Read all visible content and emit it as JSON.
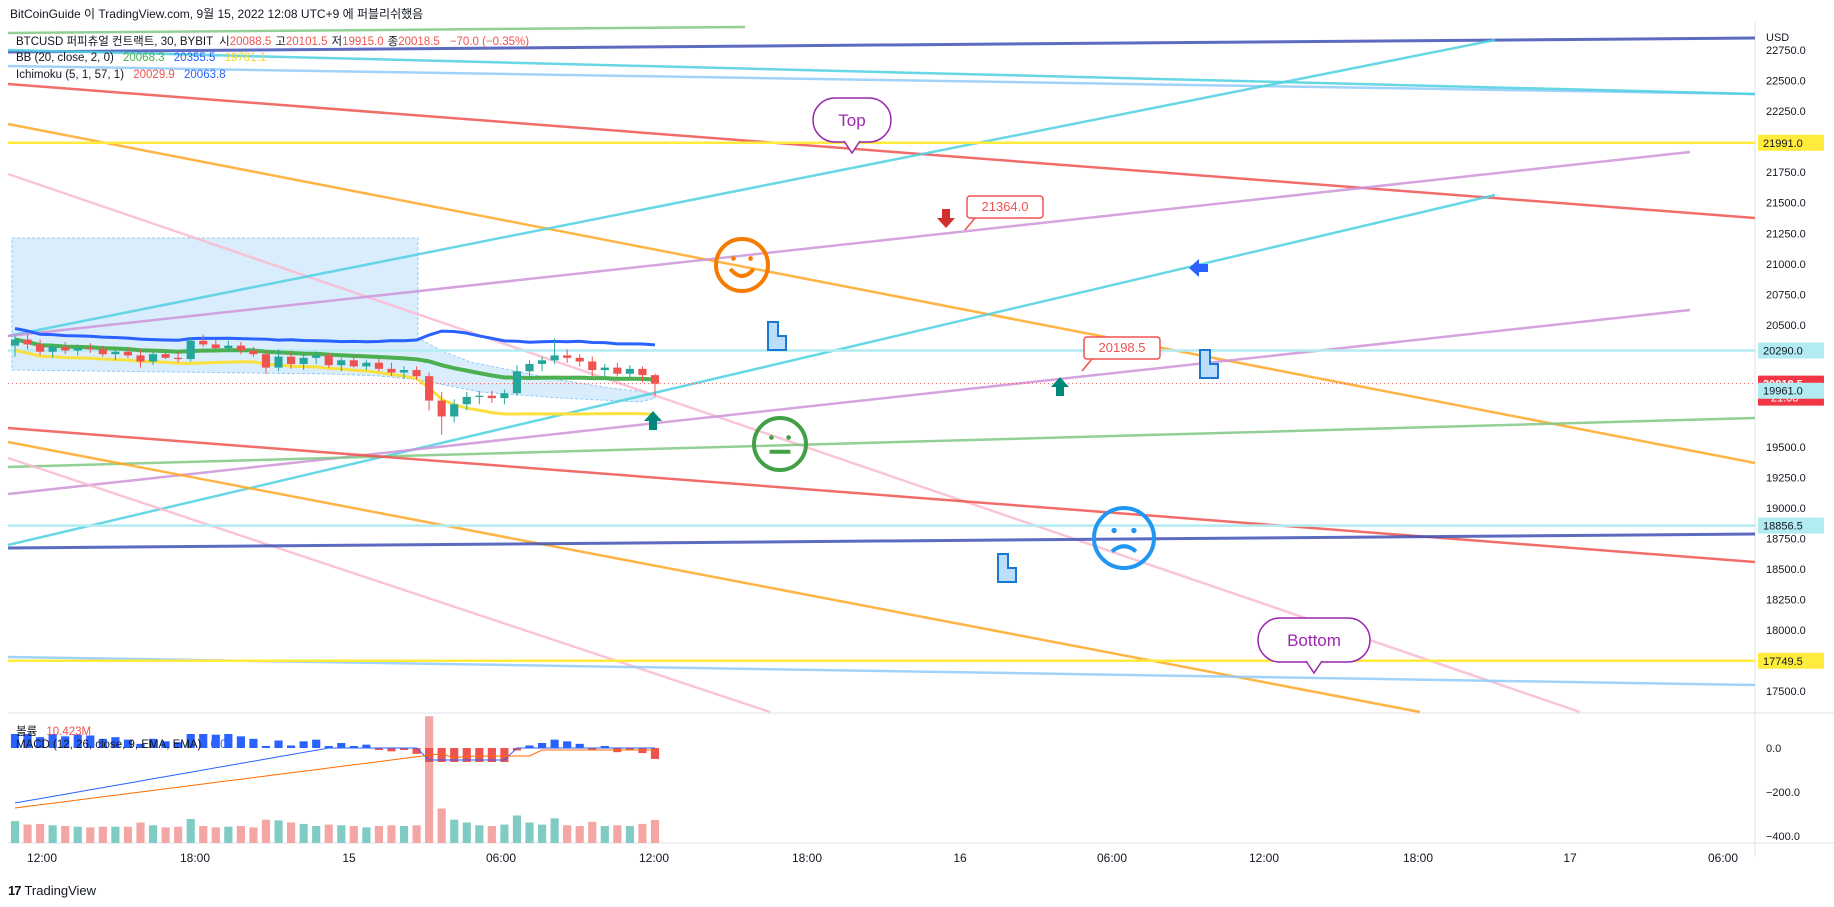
{
  "header": {
    "title": "BitCoinGuide 이 TradingView.com, 9월 15, 2022 12:08 UTC+9 에 퍼블리쉬했음"
  },
  "legend": {
    "symbol": "BTCUSD 퍼피츄얼 컨트랙트, 30, BYBIT",
    "ohlc": [
      {
        "label": "시",
        "value": "20088.5"
      },
      {
        "label": "고",
        "value": "20101.5"
      },
      {
        "label": "저",
        "value": "19915.0"
      },
      {
        "label": "종",
        "value": "20018.5"
      }
    ],
    "change": "−70.0 (−0.35%)",
    "bb": {
      "label": "BB (20, close, 2, 0)",
      "values": [
        "20068.3",
        "20355.5",
        "19781.1"
      ]
    },
    "ichimoku": {
      "label": "Ichimoku (5, 1, 57, 1)",
      "values": [
        "20029.9",
        "20063.8"
      ]
    },
    "volume": {
      "label": "볼륨",
      "value": "10.423M"
    },
    "macd": {
      "label": "MACD (12, 26, close, 9, EMA, EMA)",
      "values": [
        "0.0"
      ]
    }
  },
  "footer": {
    "brand": "TradingView"
  },
  "colors": {
    "up": "#26a69a",
    "down": "#ef5350",
    "bb_basis": "#4caf50",
    "bb_upper": "#2962ff",
    "bb_lower": "#ffeb3b",
    "cloud": "#bbdefb",
    "cyan": "#4dd0e1",
    "orange": "#ffa726",
    "red": "#ef5350",
    "purple": "#ce93d8",
    "navy": "#3f51b5",
    "green": "#81c784",
    "yellow": "#ffeb3b",
    "pink": "#f8bbd0",
    "lightblue": "#90caf9"
  },
  "chart_data": {
    "type": "candlestick",
    "symbol": "BTCUSD",
    "timeframe": "30",
    "y_axis": {
      "unit": "USD",
      "ylim": [
        17330,
        22980
      ],
      "ticks": [
        22750,
        22500,
        22250,
        22000,
        21750,
        21500,
        21250,
        21000,
        20750,
        20500,
        20250,
        20000,
        19750,
        19500,
        19250,
        19000,
        18750,
        18500,
        18250,
        18000,
        17750,
        17500
      ],
      "tick_labels": [
        "22750.0",
        "22500.0",
        "22250.0",
        "",
        "21750.0",
        "21500.0",
        "21250.0",
        "21000.0",
        "20750.0",
        "20500.0",
        "",
        "",
        "",
        "19500.0",
        "19250.0",
        "19000.0",
        "18750.0",
        "18500.0",
        "18250.0",
        "18000.0",
        "",
        "17500.0"
      ]
    },
    "x_axis": {
      "tick_labels": [
        "12:00",
        "18:00",
        "15",
        "06:00",
        "12:00",
        "18:00",
        "16",
        "06:00",
        "12:00",
        "18:00",
        "17",
        "06:00"
      ]
    },
    "price_labels": [
      {
        "value": 21991.0,
        "text": "21991.0",
        "style": "yellow"
      },
      {
        "value": 20290.0,
        "text": "20290.0",
        "style": "cyan"
      },
      {
        "value": 20018.5,
        "text": "20018.5",
        "sub": "21:08",
        "style": "red"
      },
      {
        "value": 19961.0,
        "text": "19961.0",
        "style": "cyan"
      },
      {
        "value": 18856.5,
        "text": "18856.5",
        "style": "cyan"
      },
      {
        "value": 17749.5,
        "text": "17749.5",
        "style": "yellow"
      }
    ],
    "candles": [
      {
        "o": 20330,
        "h": 20410,
        "l": 20240,
        "c": 20380
      },
      {
        "o": 20380,
        "h": 20420,
        "l": 20300,
        "c": 20340
      },
      {
        "o": 20340,
        "h": 20380,
        "l": 20250,
        "c": 20280
      },
      {
        "o": 20280,
        "h": 20340,
        "l": 20230,
        "c": 20320
      },
      {
        "o": 20320,
        "h": 20360,
        "l": 20260,
        "c": 20290
      },
      {
        "o": 20290,
        "h": 20340,
        "l": 20250,
        "c": 20310
      },
      {
        "o": 20310,
        "h": 20350,
        "l": 20270,
        "c": 20300
      },
      {
        "o": 20300,
        "h": 20330,
        "l": 20240,
        "c": 20260
      },
      {
        "o": 20260,
        "h": 20300,
        "l": 20210,
        "c": 20280
      },
      {
        "o": 20280,
        "h": 20320,
        "l": 20230,
        "c": 20250
      },
      {
        "o": 20250,
        "h": 20300,
        "l": 20150,
        "c": 20200
      },
      {
        "o": 20200,
        "h": 20280,
        "l": 20170,
        "c": 20260
      },
      {
        "o": 20260,
        "h": 20300,
        "l": 20220,
        "c": 20230
      },
      {
        "o": 20230,
        "h": 20280,
        "l": 20190,
        "c": 20220
      },
      {
        "o": 20220,
        "h": 20400,
        "l": 20200,
        "c": 20370
      },
      {
        "o": 20370,
        "h": 20420,
        "l": 20320,
        "c": 20340
      },
      {
        "o": 20340,
        "h": 20380,
        "l": 20300,
        "c": 20310
      },
      {
        "o": 20310,
        "h": 20370,
        "l": 20280,
        "c": 20330
      },
      {
        "o": 20330,
        "h": 20360,
        "l": 20260,
        "c": 20290
      },
      {
        "o": 20290,
        "h": 20320,
        "l": 20240,
        "c": 20260
      },
      {
        "o": 20260,
        "h": 20290,
        "l": 20100,
        "c": 20150
      },
      {
        "o": 20150,
        "h": 20300,
        "l": 20120,
        "c": 20240
      },
      {
        "o": 20240,
        "h": 20290,
        "l": 20140,
        "c": 20180
      },
      {
        "o": 20180,
        "h": 20260,
        "l": 20130,
        "c": 20230
      },
      {
        "o": 20230,
        "h": 20280,
        "l": 20180,
        "c": 20250
      },
      {
        "o": 20250,
        "h": 20270,
        "l": 20150,
        "c": 20170
      },
      {
        "o": 20170,
        "h": 20230,
        "l": 20120,
        "c": 20210
      },
      {
        "o": 20210,
        "h": 20250,
        "l": 20150,
        "c": 20160
      },
      {
        "o": 20160,
        "h": 20210,
        "l": 20130,
        "c": 20190
      },
      {
        "o": 20190,
        "h": 20220,
        "l": 20120,
        "c": 20140
      },
      {
        "o": 20140,
        "h": 20190,
        "l": 20080,
        "c": 20110
      },
      {
        "o": 20110,
        "h": 20160,
        "l": 20060,
        "c": 20130
      },
      {
        "o": 20130,
        "h": 20160,
        "l": 20050,
        "c": 20080
      },
      {
        "o": 20080,
        "h": 20110,
        "l": 19800,
        "c": 19880
      },
      {
        "o": 19880,
        "h": 19950,
        "l": 19600,
        "c": 19750
      },
      {
        "o": 19750,
        "h": 19890,
        "l": 19700,
        "c": 19850
      },
      {
        "o": 19850,
        "h": 19950,
        "l": 19800,
        "c": 19910
      },
      {
        "o": 19910,
        "h": 19960,
        "l": 19850,
        "c": 19920
      },
      {
        "o": 19920,
        "h": 19960,
        "l": 19860,
        "c": 19900
      },
      {
        "o": 19900,
        "h": 19970,
        "l": 19850,
        "c": 19940
      },
      {
        "o": 19940,
        "h": 20170,
        "l": 19920,
        "c": 20120
      },
      {
        "o": 20120,
        "h": 20210,
        "l": 20060,
        "c": 20180
      },
      {
        "o": 20180,
        "h": 20240,
        "l": 20120,
        "c": 20210
      },
      {
        "o": 20210,
        "h": 20390,
        "l": 20180,
        "c": 20250
      },
      {
        "o": 20250,
        "h": 20300,
        "l": 20190,
        "c": 20230
      },
      {
        "o": 20230,
        "h": 20260,
        "l": 20160,
        "c": 20200
      },
      {
        "o": 20200,
        "h": 20240,
        "l": 20080,
        "c": 20130
      },
      {
        "o": 20130,
        "h": 20180,
        "l": 20080,
        "c": 20150
      },
      {
        "o": 20150,
        "h": 20190,
        "l": 20080,
        "c": 20100
      },
      {
        "o": 20100,
        "h": 20170,
        "l": 20070,
        "c": 20140
      },
      {
        "o": 20140,
        "h": 20160,
        "l": 20030,
        "c": 20088.5
      },
      {
        "o": 20088.5,
        "h": 20101.5,
        "l": 19915,
        "c": 20018.5
      }
    ],
    "annotations": [
      {
        "type": "callout",
        "text": "Top"
      },
      {
        "type": "callout",
        "text": "Bottom"
      },
      {
        "type": "price_note",
        "text": "21364.0"
      },
      {
        "type": "price_note",
        "text": "20198.5"
      }
    ],
    "macd_axis": {
      "ticks": [
        0,
        -200,
        -400
      ],
      "tick_labels": [
        "0.0",
        "−200.0",
        "−400.0"
      ]
    },
    "grid": false
  }
}
